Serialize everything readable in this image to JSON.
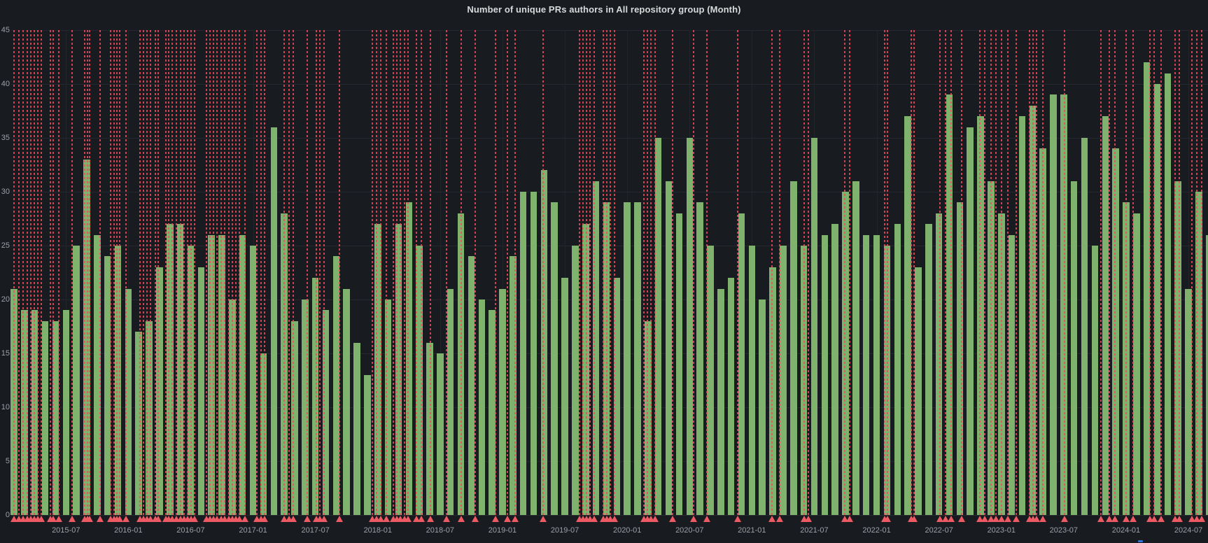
{
  "title": "Number of unique PRs authors in All repository group (Month)",
  "colors": {
    "background": "#181b1f",
    "bar_green": "#7eb26d",
    "annotation_red": "rgba(242,73,92,0.85)",
    "marker_red": "#ee5a64",
    "grid": "#25282e",
    "axis_text": "#9da1a7",
    "title_text": "#d8d9da",
    "blue_marker": "#3274d9"
  },
  "chart_data": {
    "type": "bar",
    "title": "Number of unique PRs authors in All repository group (Month)",
    "xlabel": "",
    "ylabel": "",
    "ylim": [
      0,
      45
    ],
    "y_ticks": [
      0,
      5,
      10,
      15,
      20,
      25,
      30,
      35,
      40,
      45
    ],
    "grid": true,
    "legend": "none",
    "x_tick_labels": [
      "2015-07",
      "2016-01",
      "2016-07",
      "2017-01",
      "2017-07",
      "2018-01",
      "2018-07",
      "2019-01",
      "2019-07",
      "2020-01",
      "2020-07",
      "2021-01",
      "2021-07",
      "2022-01",
      "2022-07",
      "2023-01",
      "2023-07",
      "2024-01",
      "2024-07"
    ],
    "x_tick_indices": [
      5,
      11,
      17,
      23,
      29,
      35,
      41,
      47,
      53,
      59,
      65,
      71,
      77,
      83,
      89,
      95,
      101,
      107,
      113
    ],
    "months": [
      "2015-02",
      "2015-03",
      "2015-04",
      "2015-05",
      "2015-06",
      "2015-07",
      "2015-08",
      "2015-09",
      "2015-10",
      "2015-11",
      "2015-12",
      "2016-01",
      "2016-02",
      "2016-03",
      "2016-04",
      "2016-05",
      "2016-06",
      "2016-07",
      "2016-08",
      "2016-09",
      "2016-10",
      "2016-11",
      "2016-12",
      "2017-01",
      "2017-02",
      "2017-03",
      "2017-04",
      "2017-05",
      "2017-06",
      "2017-07",
      "2017-08",
      "2017-09",
      "2017-10",
      "2017-11",
      "2017-12",
      "2018-01",
      "2018-02",
      "2018-03",
      "2018-04",
      "2018-05",
      "2018-06",
      "2018-07",
      "2018-08",
      "2018-09",
      "2018-10",
      "2018-11",
      "2018-12",
      "2019-01",
      "2019-02",
      "2019-03",
      "2019-04",
      "2019-05",
      "2019-06",
      "2019-07",
      "2019-08",
      "2019-09",
      "2019-10",
      "2019-11",
      "2019-12",
      "2020-01",
      "2020-02",
      "2020-03",
      "2020-04",
      "2020-05",
      "2020-06",
      "2020-07",
      "2020-08",
      "2020-09",
      "2020-10",
      "2020-11",
      "2020-12",
      "2021-01",
      "2021-02",
      "2021-03",
      "2021-04",
      "2021-05",
      "2021-06",
      "2021-07",
      "2021-08",
      "2021-09",
      "2021-10",
      "2021-11",
      "2021-12",
      "2022-01",
      "2022-02",
      "2022-03",
      "2022-04",
      "2022-05",
      "2022-06",
      "2022-07",
      "2022-08",
      "2022-09",
      "2022-10",
      "2022-11",
      "2022-12",
      "2023-01",
      "2023-02",
      "2023-03",
      "2023-04",
      "2023-05",
      "2023-06",
      "2023-07",
      "2023-08",
      "2023-09",
      "2023-10",
      "2023-11",
      "2023-12",
      "2024-01",
      "2024-02",
      "2024-03",
      "2024-04",
      "2024-05",
      "2024-06",
      "2024-07",
      "2024-08",
      "2024-09"
    ],
    "values": [
      21,
      19,
      19,
      18,
      18,
      19,
      25,
      33,
      26,
      24,
      25,
      21,
      17,
      18,
      23,
      27,
      27,
      25,
      23,
      26,
      26,
      20,
      26,
      25,
      15,
      36,
      28,
      18,
      20,
      22,
      19,
      24,
      21,
      16,
      13,
      27,
      20,
      27,
      29,
      25,
      16,
      15,
      21,
      28,
      24,
      20,
      19,
      21,
      24,
      30,
      30,
      32,
      29,
      22,
      25,
      27,
      31,
      29,
      22,
      29,
      29,
      18,
      35,
      31,
      28,
      35,
      29,
      25,
      21,
      22,
      28,
      25,
      20,
      23,
      25,
      31,
      25,
      35,
      26,
      27,
      30,
      31,
      26,
      26,
      25,
      27,
      37,
      23,
      27,
      28,
      39,
      29,
      36,
      37,
      31,
      28,
      26,
      37,
      38,
      34,
      39,
      39,
      31,
      35,
      25,
      37,
      34,
      29,
      28,
      42,
      40,
      41,
      31,
      21,
      30,
      26
    ],
    "annotations": {
      "style": "vertical-dashed-red-line-with-bottom-triangle",
      "positions_month_index": [
        0,
        0.45,
        0.9,
        1.25,
        1.6,
        1.95,
        2.3,
        2.65,
        3.5,
        3.8,
        4.3,
        5.6,
        6.8,
        7.05,
        7.3,
        8.3,
        9.3,
        9.6,
        9.9,
        10.2,
        10.8,
        12.1,
        12.45,
        12.8,
        13.15,
        13.6,
        13.9,
        14.6,
        14.9,
        15.2,
        15.6,
        16.0,
        16.35,
        16.7,
        17.05,
        17.4,
        18.5,
        18.85,
        19.2,
        19.55,
        19.9,
        20.3,
        20.65,
        21.0,
        21.35,
        21.7,
        22.2,
        23.4,
        23.75,
        24.1,
        26.0,
        26.45,
        26.9,
        28.2,
        29.1,
        29.45,
        29.8,
        31.3,
        34.5,
        34.9,
        35.3,
        35.8,
        36.5,
        36.85,
        37.2,
        37.55,
        37.9,
        38.7,
        39.2,
        40.1,
        41.6,
        43.0,
        44.4,
        46.3,
        47.5,
        48.2,
        50.9,
        54.4,
        54.75,
        55.1,
        55.45,
        55.8,
        56.7,
        57.05,
        57.4,
        57.75,
        60.6,
        60.95,
        61.3,
        61.7,
        63.4,
        65.4,
        66.7,
        69.6,
        72.9,
        73.7,
        76.0,
        76.4,
        79.9,
        80.4,
        83.8,
        84.05,
        86.3,
        86.6,
        89.1,
        89.6,
        90.2,
        91.2,
        92.9,
        93.4,
        94.0,
        94.5,
        95.0,
        95.6,
        96.4,
        97.7,
        98.05,
        98.4,
        99.0,
        101.1,
        104.6,
        105.4,
        105.9,
        107.0,
        107.7,
        109.3,
        109.7,
        110.4,
        111.7,
        112.1,
        113.3,
        113.8,
        114.3
      ]
    }
  }
}
